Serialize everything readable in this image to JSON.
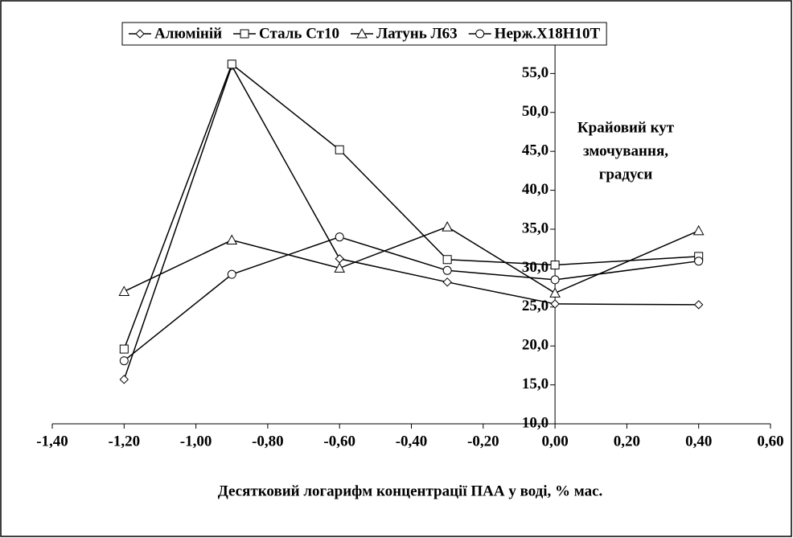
{
  "chart_data": {
    "type": "line",
    "legend": "top",
    "ylabel_lines": [
      "Крайовий кут",
      "змочування,",
      "градуси"
    ],
    "xlabel": "Десятковий логарифм концентрації ПАА у воді, % мас.",
    "x": [
      -1.2,
      -0.9,
      -0.6,
      -0.3,
      0,
      0.4
    ],
    "series": [
      {
        "name": "Алюміній",
        "color": "#000000",
        "marker": "diamond",
        "values": [
          15.7,
          56.0,
          31.2,
          28.2,
          25.4,
          25.3
        ]
      },
      {
        "name": "Сталь Ст10",
        "color": "#000000",
        "marker": "square",
        "values": [
          19.6,
          56.2,
          45.2,
          31.1,
          30.4,
          31.5
        ]
      },
      {
        "name": "Латунь Л63",
        "color": "#000000",
        "marker": "triangle",
        "values": [
          27.0,
          33.6,
          30.0,
          35.3,
          26.8,
          34.8
        ]
      },
      {
        "name": "Нерж.Х18Н10Т",
        "color": "#000000",
        "marker": "circle",
        "values": [
          18.1,
          29.2,
          34.0,
          29.7,
          28.5,
          30.9
        ]
      }
    ],
    "xlim": [
      -1.4,
      0.6
    ],
    "xticks": [
      {
        "value": -1.4,
        "label": "-1,40"
      },
      {
        "value": -1.2,
        "label": "-1,20"
      },
      {
        "value": -1.0,
        "label": "-1,00"
      },
      {
        "value": -0.8,
        "label": "-0,80"
      },
      {
        "value": -0.6,
        "label": "-0,60"
      },
      {
        "value": -0.4,
        "label": "-0,40"
      },
      {
        "value": -0.2,
        "label": "-0,20"
      },
      {
        "value": 0,
        "label": "0,00"
      },
      {
        "value": 0.2,
        "label": "0,20"
      },
      {
        "value": 0.4,
        "label": "0,40"
      },
      {
        "value": 0.6,
        "label": "0,60"
      }
    ],
    "ylim": [
      10,
      60
    ],
    "yticks": [
      {
        "value": 10,
        "label": "10,0"
      },
      {
        "value": 15,
        "label": "15,0"
      },
      {
        "value": 20,
        "label": "20,0"
      },
      {
        "value": 25,
        "label": "25,0"
      },
      {
        "value": 30,
        "label": "30,0"
      },
      {
        "value": 35,
        "label": "35,0"
      },
      {
        "value": 40,
        "label": "40,0"
      },
      {
        "value": 45,
        "label": "45,0"
      },
      {
        "value": 50,
        "label": "50,0"
      },
      {
        "value": 55,
        "label": "55,0"
      }
    ]
  }
}
